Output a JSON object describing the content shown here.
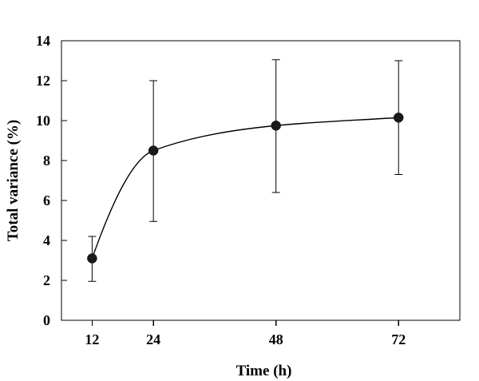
{
  "chart_data": {
    "type": "line",
    "title": "",
    "xlabel": "Time (h)",
    "ylabel": "Total variance (%)",
    "x": [
      12,
      24,
      48,
      72
    ],
    "xlim": [
      6,
      84
    ],
    "xticks": [
      12,
      24,
      48,
      72
    ],
    "ylim": [
      0,
      14
    ],
    "yticks": [
      0,
      2,
      4,
      6,
      8,
      10,
      12,
      14
    ],
    "grid": false,
    "legend": "none",
    "series": [
      {
        "values": [
          3.1,
          8.5,
          9.75,
          10.15
        ],
        "error_low": [
          1.95,
          4.95,
          6.4,
          7.3
        ],
        "error_high": [
          4.2,
          12.0,
          13.05,
          13.0
        ],
        "marker": "filled-circle",
        "line": "smooth"
      }
    ]
  }
}
